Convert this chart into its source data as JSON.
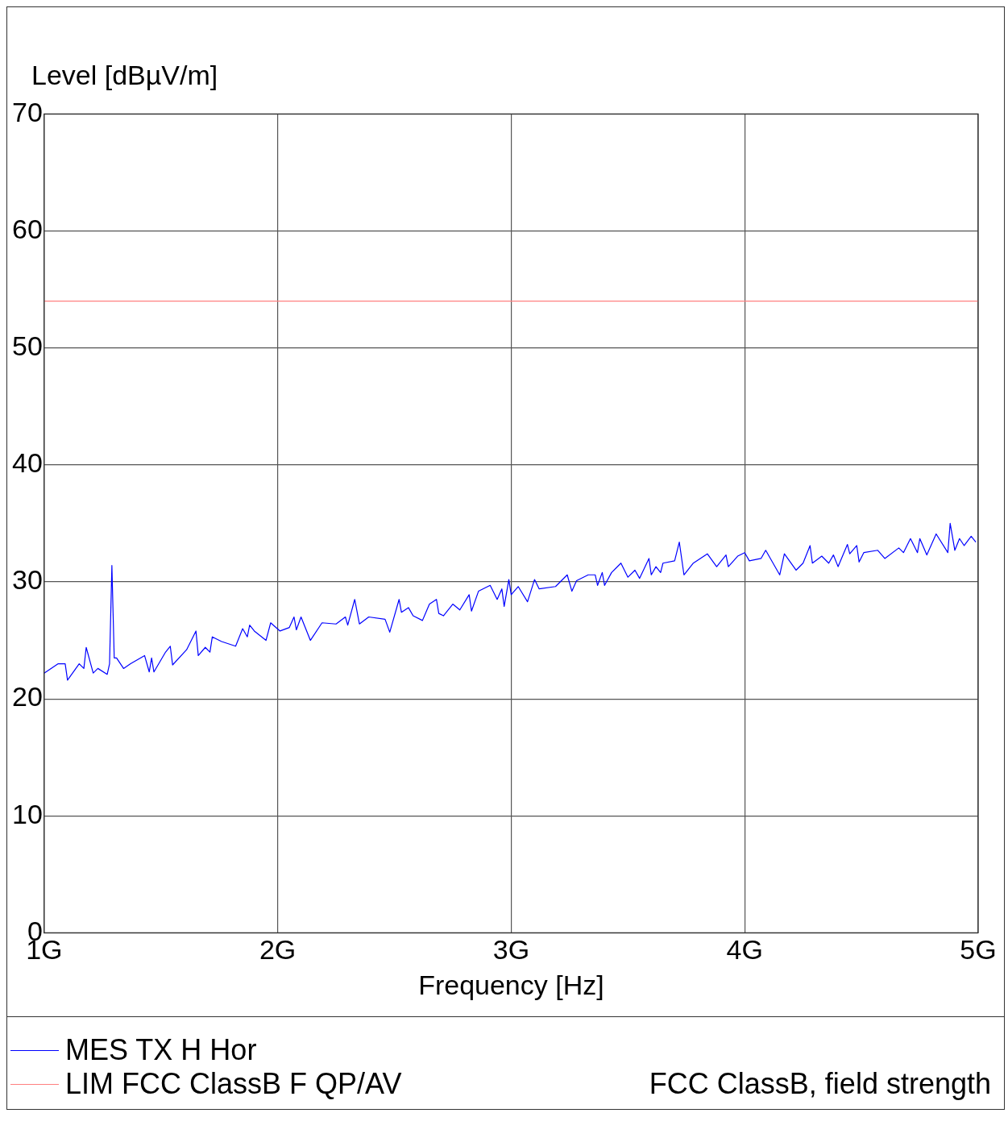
{
  "chart_data": {
    "type": "line",
    "ylabel": "Level [dBµV/m]",
    "xlabel": "Frequency [Hz]",
    "xlim": [
      1,
      5
    ],
    "xticks": [
      {
        "value": 1,
        "label": "1G"
      },
      {
        "value": 2,
        "label": "2G"
      },
      {
        "value": 3,
        "label": "3G"
      },
      {
        "value": 4,
        "label": "4G"
      },
      {
        "value": 5,
        "label": "5G"
      }
    ],
    "ylim": [
      0,
      70
    ],
    "yticks": [
      0,
      10,
      20,
      30,
      40,
      50,
      60,
      70
    ],
    "grid": true,
    "legend": "bottom",
    "marker": "none",
    "line_style": "solid",
    "annotations": [
      "FCC ClassB, field strength"
    ],
    "series": [
      {
        "name": "MES TX H Hor",
        "color": "#0000ff",
        "x": [
          1.0,
          1.06,
          1.09,
          1.1,
          1.15,
          1.17,
          1.18,
          1.21,
          1.23,
          1.27,
          1.28,
          1.29,
          1.3,
          1.31,
          1.34,
          1.37,
          1.43,
          1.45,
          1.46,
          1.47,
          1.52,
          1.54,
          1.55,
          1.61,
          1.65,
          1.66,
          1.69,
          1.71,
          1.72,
          1.76,
          1.82,
          1.85,
          1.87,
          1.88,
          1.9,
          1.95,
          1.97,
          2.01,
          2.05,
          2.07,
          2.08,
          2.1,
          2.14,
          2.19,
          2.25,
          2.29,
          2.3,
          2.33,
          2.35,
          2.39,
          2.46,
          2.48,
          2.52,
          2.53,
          2.56,
          2.58,
          2.62,
          2.65,
          2.68,
          2.69,
          2.71,
          2.75,
          2.78,
          2.82,
          2.83,
          2.86,
          2.91,
          2.94,
          2.96,
          2.97,
          2.99,
          3.0,
          3.03,
          3.07,
          3.1,
          3.12,
          3.19,
          3.24,
          3.26,
          3.28,
          3.33,
          3.36,
          3.37,
          3.39,
          3.4,
          3.43,
          3.47,
          3.5,
          3.53,
          3.55,
          3.59,
          3.6,
          3.62,
          3.64,
          3.65,
          3.7,
          3.72,
          3.74,
          3.78,
          3.84,
          3.88,
          3.92,
          3.93,
          3.97,
          4.0,
          4.02,
          4.07,
          4.09,
          4.15,
          4.17,
          4.22,
          4.25,
          4.28,
          4.29,
          4.33,
          4.36,
          4.38,
          4.4,
          4.44,
          4.45,
          4.48,
          4.49,
          4.51,
          4.57,
          4.6,
          4.66,
          4.68,
          4.71,
          4.74,
          4.75,
          4.78,
          4.82,
          4.87,
          4.88,
          4.9,
          4.92,
          4.94,
          4.97,
          4.99
        ],
        "values": [
          22.2,
          23.0,
          23.0,
          21.6,
          23.0,
          22.6,
          24.4,
          22.2,
          22.6,
          22.1,
          23.0,
          31.4,
          23.5,
          23.5,
          22.6,
          23.0,
          23.7,
          22.3,
          23.5,
          22.3,
          24.0,
          24.5,
          22.9,
          24.2,
          25.8,
          23.7,
          24.4,
          24.0,
          25.3,
          24.9,
          24.5,
          26.0,
          25.3,
          26.3,
          25.8,
          25.0,
          26.5,
          25.8,
          26.1,
          27.0,
          25.9,
          27.0,
          25.0,
          26.5,
          26.4,
          27.0,
          26.3,
          28.5,
          26.4,
          27.0,
          26.8,
          25.7,
          28.5,
          27.4,
          27.8,
          27.1,
          26.7,
          28.1,
          28.5,
          27.3,
          27.1,
          28.1,
          27.6,
          28.9,
          27.5,
          29.2,
          29.7,
          28.5,
          29.4,
          27.9,
          30.2,
          28.9,
          29.6,
          28.3,
          30.2,
          29.4,
          29.6,
          30.6,
          29.2,
          30.1,
          30.6,
          30.6,
          29.7,
          30.8,
          29.7,
          30.8,
          31.6,
          30.4,
          31.0,
          30.3,
          32.0,
          30.6,
          31.3,
          30.8,
          31.6,
          31.8,
          33.4,
          30.6,
          31.6,
          32.4,
          31.3,
          32.3,
          31.3,
          32.2,
          32.5,
          31.8,
          32.0,
          32.7,
          30.6,
          32.4,
          31.0,
          31.6,
          33.1,
          31.6,
          32.2,
          31.6,
          32.3,
          31.3,
          33.2,
          32.4,
          33.1,
          31.7,
          32.5,
          32.7,
          32.0,
          32.9,
          32.5,
          33.7,
          32.5,
          33.7,
          32.3,
          34.1,
          32.5,
          35.0,
          32.7,
          33.7,
          33.1,
          33.9,
          33.4
        ]
      },
      {
        "name": "LIM FCC ClassB F QP/AV",
        "color": "#ff8080",
        "x": [
          1,
          5
        ],
        "values": [
          54,
          54
        ]
      }
    ]
  }
}
